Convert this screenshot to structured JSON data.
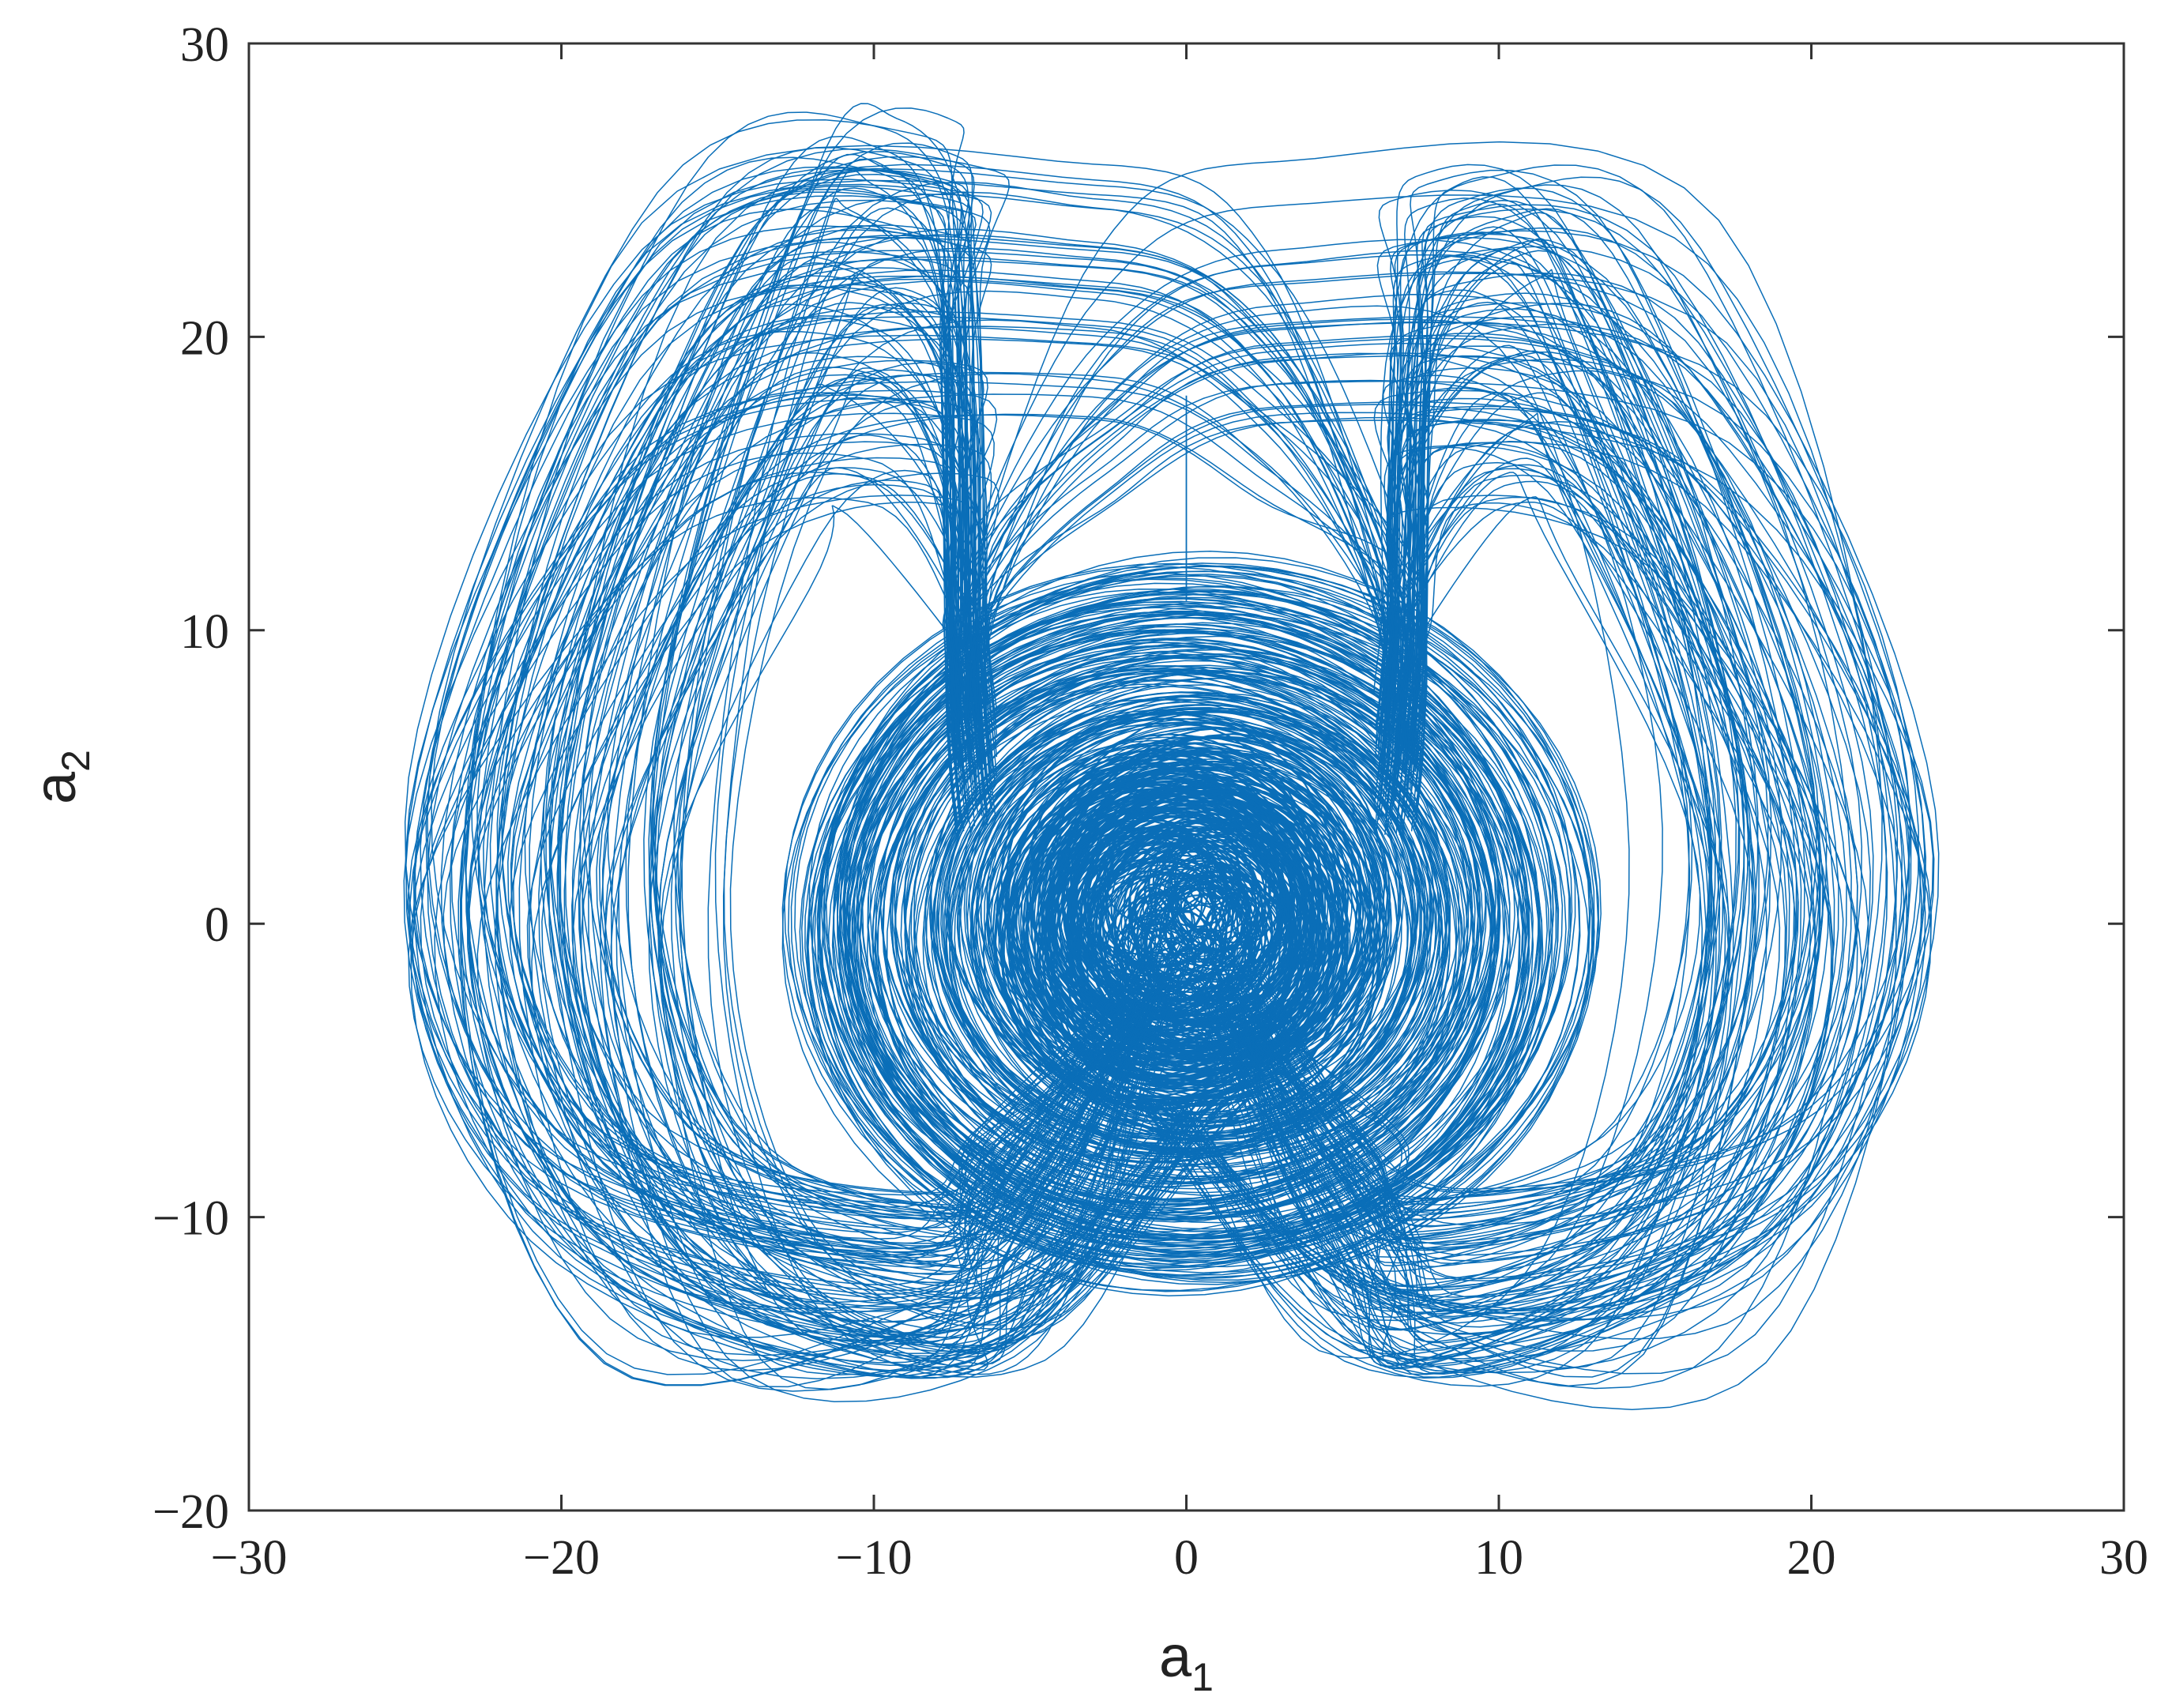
{
  "chart_data": {
    "type": "line",
    "title": "",
    "xlabel": "a",
    "xlabel_subscript": "1",
    "ylabel": "a",
    "ylabel_subscript": "2",
    "xlim": [
      -30,
      30
    ],
    "ylim": [
      -20,
      30
    ],
    "x_ticks": [
      -30,
      -20,
      -10,
      0,
      10,
      20,
      30
    ],
    "y_ticks": [
      -20,
      -10,
      0,
      10,
      20,
      30
    ],
    "x_tick_labels": [
      "−30",
      "−20",
      "−10",
      "0",
      "10",
      "20",
      "30"
    ],
    "y_tick_labels": [
      "−20",
      "−10",
      "0",
      "10",
      "20",
      "30"
    ],
    "grid": false,
    "legend": "none",
    "series": [
      {
        "color": "#0a6eb8",
        "description_of_trajectory": "",
        "orbits": {
          "inner_center": [
            0,
            0
          ],
          "inner_radius_range": [
            2,
            12
          ],
          "left_lobe_center": [
            -6,
            4
          ],
          "right_lobe_center": [
            6,
            4
          ],
          "outer_x_range": [
            -25,
            24
          ],
          "outer_y_range": [
            -15.8,
            27.8
          ],
          "lobe_tips": [
            [
              -7,
              6
            ],
            [
              7,
              6
            ]
          ],
          "vertical_segment": {
            "x": 0,
            "y": [
              11,
              18
            ]
          }
        }
      }
    ]
  }
}
